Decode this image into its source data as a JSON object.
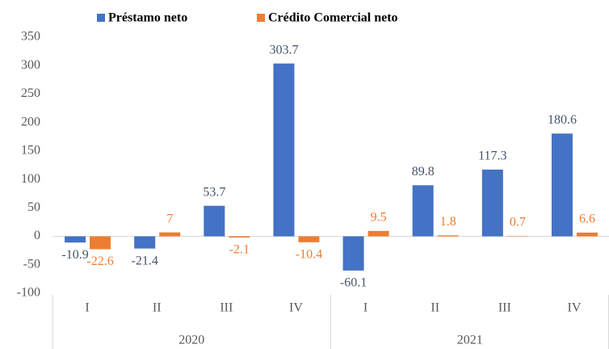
{
  "chart_data": {
    "type": "bar",
    "categories": [
      "I",
      "II",
      "III",
      "IV",
      "I",
      "II",
      "III",
      "IV"
    ],
    "group_labels": [
      "2020",
      "2021"
    ],
    "series": [
      {
        "name": "Préstamo neto",
        "color": "#4472c4",
        "values": [
          -10.9,
          -21.4,
          53.7,
          303.7,
          -60.1,
          89.8,
          117.3,
          180.6
        ]
      },
      {
        "name": "Crédito Comercial neto",
        "color": "#ed7d31",
        "values": [
          -22.6,
          7,
          -2.1,
          -10.4,
          9.5,
          1.8,
          0.7,
          6.6
        ]
      }
    ],
    "ylim": [
      -100,
      350
    ],
    "yticks": [
      -100,
      -50,
      0,
      50,
      100,
      150,
      200,
      250,
      300,
      350
    ],
    "legend": "top"
  }
}
